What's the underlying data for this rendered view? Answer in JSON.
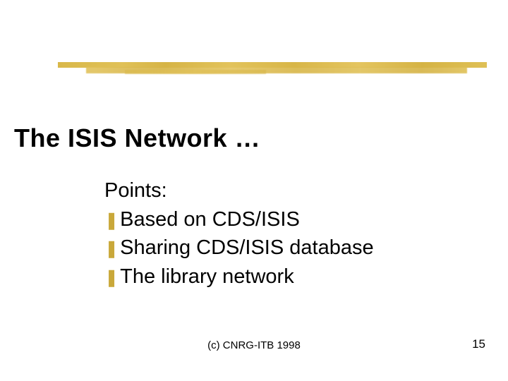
{
  "slide": {
    "title": "The ISIS Network …",
    "title_fontsize": 36,
    "title_fontweight": 900,
    "title_color": "#000000",
    "points_label": "Points:",
    "body_fontsize": 29,
    "body_color": "#000000",
    "bullets": [
      {
        "text": "Based on CDS/ISIS"
      },
      {
        "text": "Sharing CDS/ISIS database"
      },
      {
        "text": "The library network"
      }
    ],
    "bullet_glyph": "❚",
    "bullet_color": "#c9a83a",
    "bullet_fontsize": 24,
    "footer": "(c) CNRG-ITB 1998",
    "footer_fontsize": 15,
    "page_number": "15",
    "page_number_fontsize": 17,
    "divider_color": "#d9b84a",
    "background_color": "#ffffff"
  }
}
